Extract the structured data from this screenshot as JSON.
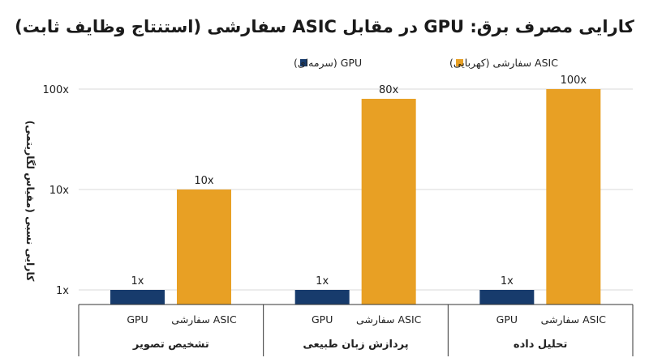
{
  "chart_data": {
    "type": "bar",
    "title": "کارایی مصرف برق: GPU در مقابل ASIC سفارشی (استنتاج وظایف ثابت)",
    "ylabel": "کارایی نسبی (مقیاس لگاریتمی)",
    "xlabel": "",
    "yscale": "log",
    "ylim": [
      1,
      100
    ],
    "ticks": [
      {
        "value": 1,
        "label": "1x"
      },
      {
        "value": 10,
        "label": "10x"
      },
      {
        "value": 100,
        "label": "100x"
      }
    ],
    "grid": true,
    "legend_position": "top",
    "groups": [
      "تشخیص تصویر",
      "پردازش زبان طبیعی",
      "تحلیل داده"
    ],
    "series": [
      {
        "name": "GPU (سرمه‌ای)",
        "short": "GPU",
        "color": "#173B6C",
        "values": [
          1,
          1,
          1
        ],
        "labels": [
          "1x",
          "1x",
          "1x"
        ]
      },
      {
        "name": "ASIC سفارشی (کهربایی)",
        "short": "ASIC سفارشی",
        "color": "#E8A024",
        "values": [
          10,
          80,
          100
        ],
        "labels": [
          "10x",
          "80x",
          "100x"
        ]
      }
    ]
  }
}
